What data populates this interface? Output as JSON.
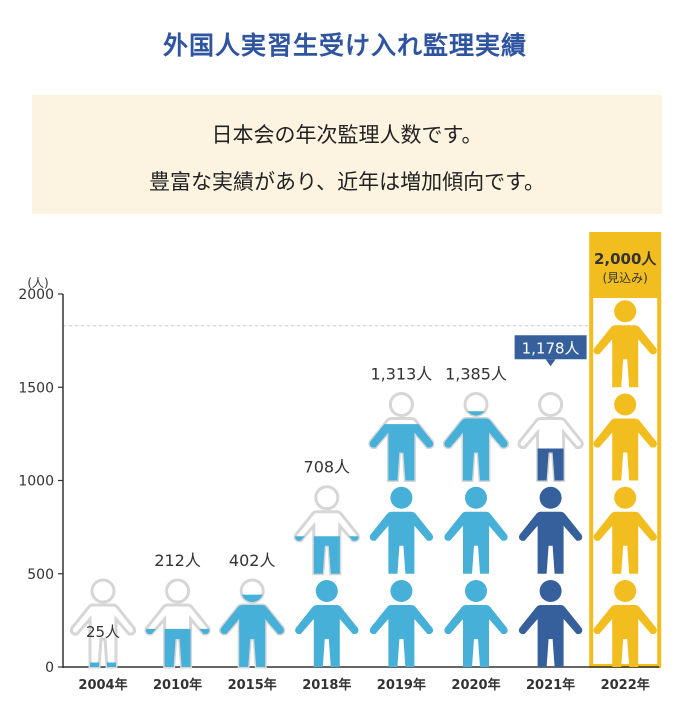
{
  "header": {
    "title": "外国人実習生受け入れ監理実績",
    "description_line1": "日本会の年次監理人数です。",
    "description_line2": "豊富な実績があり、近年は増加傾向です。"
  },
  "colors": {
    "title": "#2f54a0",
    "box_bg": "#fcf4e1",
    "figure_empty": "#d6d6d6",
    "figure_light": "#46b0d8",
    "figure_dark": "#35609b",
    "figure_forecast": "#f1bd1f",
    "badge_dark": "#35609b",
    "badge_forecast": "#f1bd1f"
  },
  "chart_data": {
    "type": "bar",
    "ylabel": "(人)",
    "ylim": [
      0,
      2000
    ],
    "yticks": [
      "0",
      "500",
      "1000",
      "1500",
      "2000"
    ],
    "categories": [
      "2004",
      "2010",
      "2015",
      "2018",
      "2019",
      "2020",
      "2021",
      "2022"
    ],
    "year_suffix": "年",
    "values": [
      25,
      212,
      402,
      708,
      1313,
      1385,
      1178,
      2000
    ],
    "value_labels": [
      "25",
      "212",
      "402",
      "708",
      "1,313",
      "1,385",
      "1,178",
      "2,000"
    ],
    "value_unit": "人",
    "forecast_note": "(見込み)",
    "forecast_index": 7,
    "highlight_index": 6,
    "reference_line": 1830
  }
}
